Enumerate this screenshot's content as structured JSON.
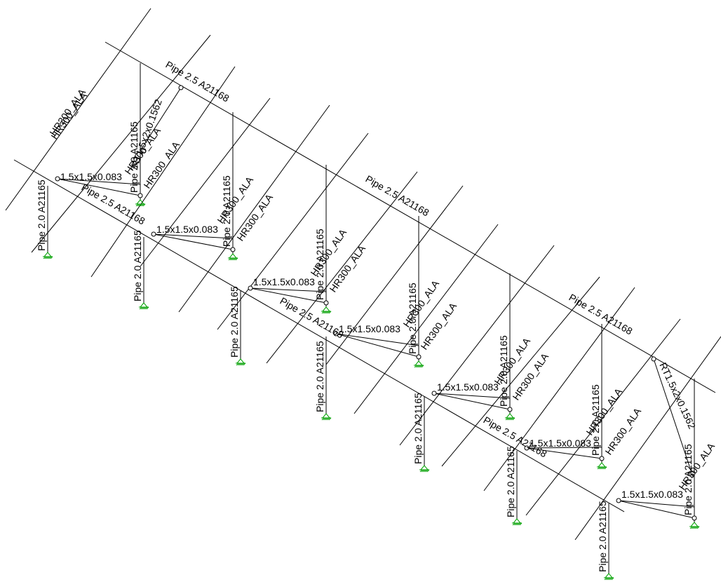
{
  "labels": {
    "rail": "HR300_ALA",
    "purlin": "Pipe 2.5 A21168",
    "post": "Pipe 2.0 A21165",
    "strut": "1.5x1.5x0.083",
    "brace": "RT1.5x2x0.1562"
  },
  "colors": {
    "support": "#00a000",
    "member": "#000000",
    "background": "#ffffff"
  },
  "frame_count": 7,
  "rail_count": 14
}
